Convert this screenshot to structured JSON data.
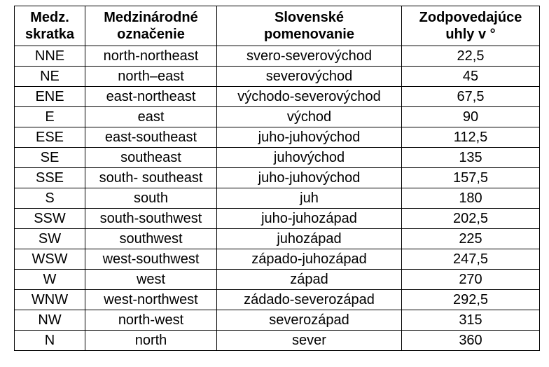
{
  "table": {
    "header": [
      [
        "Medz.",
        "skratka"
      ],
      [
        "Medzinárodné",
        "označenie"
      ],
      [
        "Slovenské",
        "pomenovanie"
      ],
      [
        "Zodpovedajúce",
        "uhly v °"
      ]
    ],
    "rows": [
      [
        "NNE",
        "north-northeast",
        "svero-severovýchod",
        "22,5"
      ],
      [
        "NE",
        "north–east",
        "severovýchod",
        "45"
      ],
      [
        "ENE",
        "east-northeast",
        "východo-severovýchod",
        "67,5"
      ],
      [
        "E",
        "east",
        "východ",
        "90"
      ],
      [
        "ESE",
        "east-southeast",
        "juho-juhovýchod",
        "112,5"
      ],
      [
        "SE",
        "southeast",
        "juhovýchod",
        "135"
      ],
      [
        "SSE",
        "south- southeast",
        "juho-juhovýchod",
        "157,5"
      ],
      [
        "S",
        "south",
        "juh",
        "180"
      ],
      [
        "SSW",
        "south-southwest",
        "juho-juhozápad",
        "202,5"
      ],
      [
        "SW",
        "southwest",
        "juhozápad",
        "225"
      ],
      [
        "WSW",
        "west-southwest",
        "západo-juhozápad",
        "247,5"
      ],
      [
        "W",
        "west",
        "západ",
        "270"
      ],
      [
        "WNW",
        "west-northwest",
        "zádado-severozápad",
        "292,5"
      ],
      [
        "NW",
        "north-west",
        "severozápad",
        "315"
      ],
      [
        "N",
        "north",
        "sever",
        "360"
      ]
    ]
  }
}
